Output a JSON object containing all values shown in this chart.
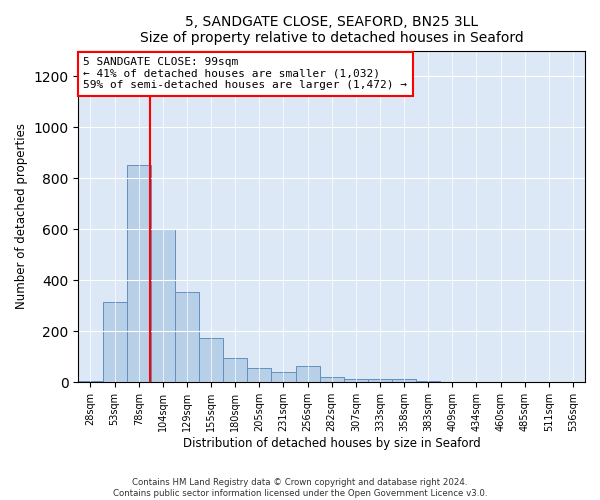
{
  "title": "5, SANDGATE CLOSE, SEAFORD, BN25 3LL",
  "subtitle": "Size of property relative to detached houses in Seaford",
  "xlabel": "Distribution of detached houses by size in Seaford",
  "ylabel": "Number of detached properties",
  "bar_labels": [
    "28sqm",
    "53sqm",
    "78sqm",
    "104sqm",
    "129sqm",
    "155sqm",
    "180sqm",
    "205sqm",
    "231sqm",
    "256sqm",
    "282sqm",
    "307sqm",
    "333sqm",
    "358sqm",
    "383sqm",
    "409sqm",
    "434sqm",
    "460sqm",
    "485sqm",
    "511sqm",
    "536sqm"
  ],
  "bar_values": [
    5,
    315,
    850,
    600,
    355,
    175,
    95,
    55,
    40,
    65,
    20,
    15,
    15,
    15,
    5,
    0,
    0,
    0,
    0,
    0,
    0
  ],
  "bar_color": "#b8cfe8",
  "bar_edge_color": "#6090c0",
  "red_line_x": 2.45,
  "annotation_lines": [
    "5 SANDGATE CLOSE: 99sqm",
    "← 41% of detached houses are smaller (1,032)",
    "59% of semi-detached houses are larger (1,472) →"
  ],
  "ylim": [
    0,
    1300
  ],
  "yticks": [
    0,
    200,
    400,
    600,
    800,
    1000,
    1200
  ],
  "bg_color": "#dce8f5",
  "footer_line1": "Contains HM Land Registry data © Crown copyright and database right 2024.",
  "footer_line2": "Contains public sector information licensed under the Open Government Licence v3.0."
}
